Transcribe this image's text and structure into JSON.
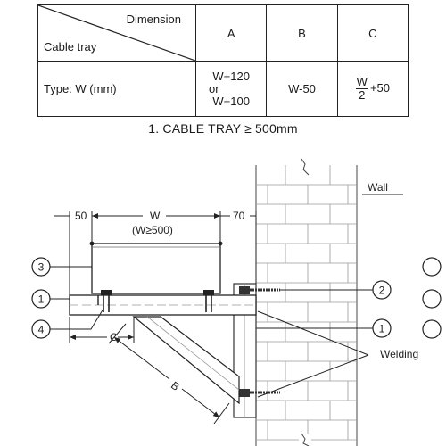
{
  "table": {
    "header_dimension": "Dimension",
    "header_cable_tray": "Cable tray",
    "col_a": "A",
    "col_b": "B",
    "col_c": "C",
    "row_label": "Type: W (mm)",
    "a_line1": "W+120",
    "a_line2": "or",
    "a_line3": "W+100",
    "b_value": "W-50",
    "c_numerator": "W",
    "c_denominator": "2",
    "c_suffix": "+50"
  },
  "caption": "1. CABLE TRAY ≥ 500mm",
  "drawing": {
    "dim_50": "50",
    "dim_w": "W",
    "dim_w_note": "(W≥500)",
    "dim_70": "70",
    "dim_c": "C",
    "dim_b": "B",
    "wall_label": "Wall",
    "welding_label": "Welding",
    "callout_1_left": "1",
    "callout_3": "3",
    "callout_4": "4",
    "callout_2": "2",
    "callout_1_right": "1"
  }
}
